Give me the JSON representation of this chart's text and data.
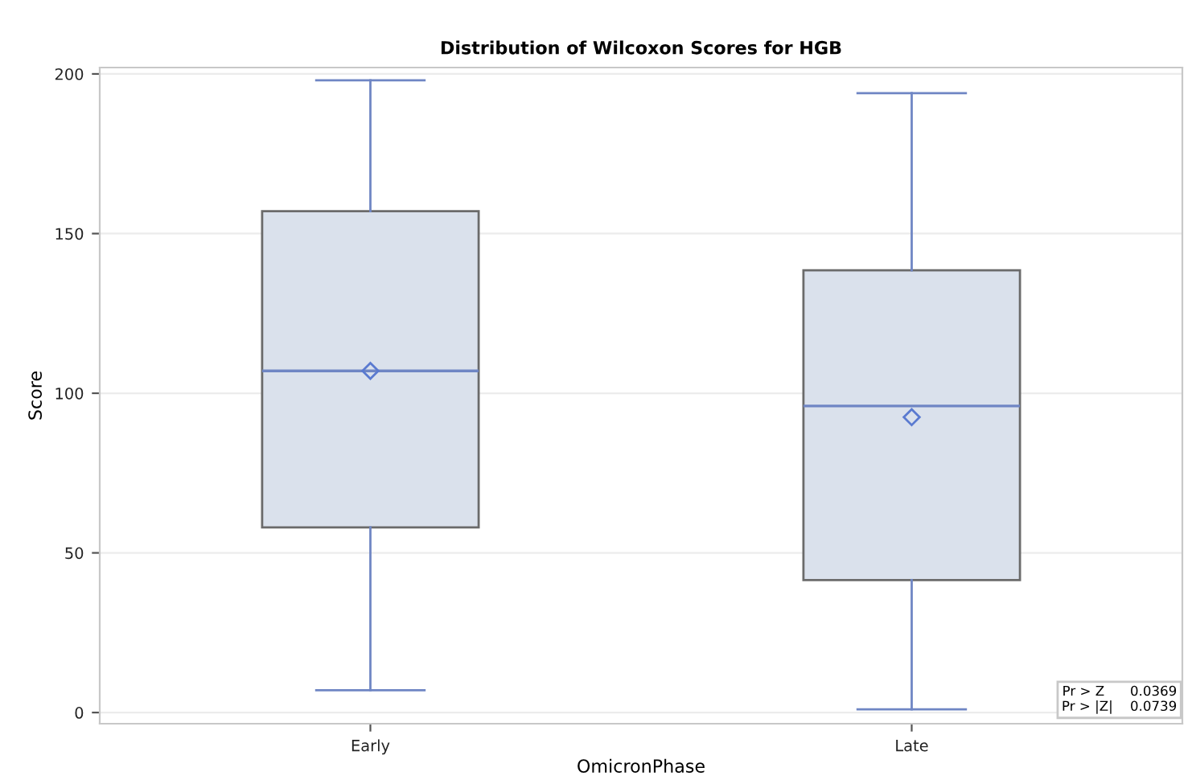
{
  "chart_data": {
    "type": "box",
    "title": "Distribution of Wilcoxon Scores for HGB",
    "xlabel": "OmicronPhase",
    "ylabel": "Score",
    "categories": [
      "Early",
      "Late"
    ],
    "boxes": [
      {
        "low": 7,
        "q1": 58,
        "median": 107,
        "q3": 157,
        "high": 198,
        "mean": 107
      },
      {
        "low": 1,
        "q1": 41.5,
        "median": 96,
        "q3": 138.5,
        "high": 194,
        "mean": 92.5
      }
    ],
    "color": "#dae1ec",
    "ylim": [
      -3.5,
      202
    ],
    "yticks": [
      0,
      50,
      100,
      150,
      200
    ],
    "grid": "y",
    "marker": "diamond",
    "annotations": [
      "Pr > Z      0.0369",
      "Pr > |Z|    0.0739"
    ]
  }
}
